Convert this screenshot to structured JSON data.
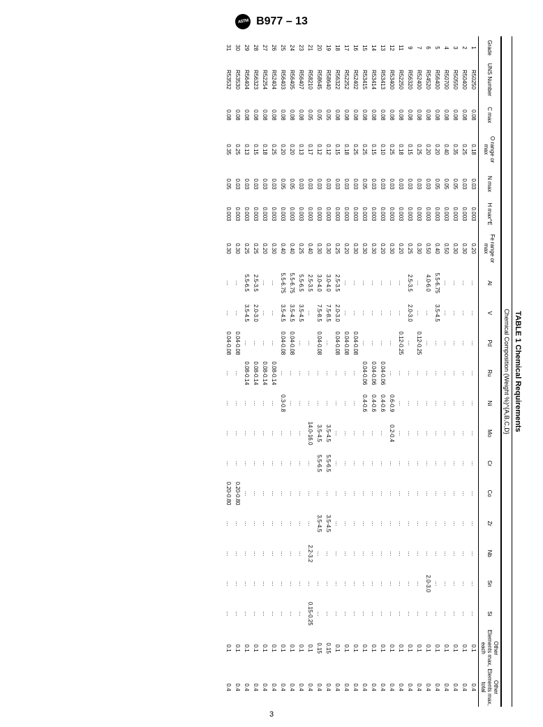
{
  "doc_id": "B977 – 13",
  "logo_text": "ASTM",
  "table_title": "TABLE 1 Chemical Requirements",
  "table_subtitle": "Chemical Composition (Weight %)^{A,B,C,D}",
  "page_number": "3",
  "columns": [
    {
      "key": "grade",
      "label": "Grade"
    },
    {
      "key": "uns",
      "label": "UNS Number"
    },
    {
      "key": "c",
      "label": "C max"
    },
    {
      "key": "o",
      "label": "O range or max"
    },
    {
      "key": "n",
      "label": "N max"
    },
    {
      "key": "h",
      "label": "H max^E"
    },
    {
      "key": "fe",
      "label": "Fe range or max"
    },
    {
      "key": "al",
      "label": "Al"
    },
    {
      "key": "v",
      "label": "V"
    },
    {
      "key": "pd",
      "label": "Pd"
    },
    {
      "key": "ru",
      "label": "Ru"
    },
    {
      "key": "ni",
      "label": "Ni"
    },
    {
      "key": "mo",
      "label": "Mo"
    },
    {
      "key": "cr",
      "label": "Cr"
    },
    {
      "key": "co",
      "label": "Co"
    },
    {
      "key": "zr",
      "label": "Zr"
    },
    {
      "key": "nb",
      "label": "Nb"
    },
    {
      "key": "sn",
      "label": "Sn"
    },
    {
      "key": "si",
      "label": "Si"
    },
    {
      "key": "oe_each",
      "label": "Other Elements max, each"
    },
    {
      "key": "oe_total",
      "label": "Other Elements max, total"
    }
  ],
  "rows": [
    {
      "grade": "1",
      "uns": "R50250",
      "c": "0.08",
      "o": "0.18",
      "n": "0.03",
      "h": "0.003",
      "fe": "0.20",
      "al": "…",
      "v": "…",
      "pd": "…",
      "ru": "…",
      "ni": "…",
      "mo": "…",
      "cr": "…",
      "co": "…",
      "zr": "…",
      "nb": "…",
      "sn": "…",
      "si": "…",
      "oe_each": "0.1",
      "oe_total": "0.4"
    },
    {
      "grade": "2",
      "uns": "R50400",
      "c": "0.08",
      "o": "0.25",
      "n": "0.03",
      "h": "0.003",
      "fe": "0.30",
      "al": "…",
      "v": "…",
      "pd": "…",
      "ru": "…",
      "ni": "…",
      "mo": "…",
      "cr": "…",
      "co": "…",
      "zr": "…",
      "nb": "…",
      "sn": "…",
      "si": "…",
      "oe_each": "0.1",
      "oe_total": "0.4"
    },
    {
      "grade": "3",
      "uns": "R50550",
      "c": "0.08",
      "o": "0.35",
      "n": "0.05",
      "h": "0.003",
      "fe": "0.30",
      "al": "…",
      "v": "…",
      "pd": "…",
      "ru": "…",
      "ni": "…",
      "mo": "…",
      "cr": "…",
      "co": "…",
      "zr": "…",
      "nb": "…",
      "sn": "…",
      "si": "…",
      "oe_each": "0.1",
      "oe_total": "0.4"
    },
    {
      "grade": "4",
      "uns": "R50700",
      "c": "0.08",
      "o": "0.40",
      "n": "0.05",
      "h": "0.003",
      "fe": "0.50",
      "al": "…",
      "v": "…",
      "pd": "…",
      "ru": "…",
      "ni": "…",
      "mo": "…",
      "cr": "…",
      "co": "…",
      "zr": "…",
      "nb": "…",
      "sn": "…",
      "si": "…",
      "oe_each": "0.1",
      "oe_total": "0.4"
    },
    {
      "grade": "5",
      "uns": "R56400",
      "c": "0.08",
      "o": "0.20",
      "n": "0.05",
      "h": "0.003",
      "fe": "0.40",
      "al": "5.5-6.75",
      "v": "3.5-4.5",
      "pd": "…",
      "ru": "…",
      "ni": "…",
      "mo": "…",
      "cr": "…",
      "co": "…",
      "zr": "…",
      "nb": "…",
      "sn": "…",
      "si": "…",
      "oe_each": "0.1",
      "oe_total": "0.4"
    },
    {
      "grade": "6",
      "uns": "R54520",
      "c": "0.08",
      "o": "0.20",
      "n": "0.03",
      "h": "0.003",
      "fe": "0.50",
      "al": "4.0-6.0",
      "v": "…",
      "pd": "…",
      "ru": "…",
      "ni": "…",
      "mo": "…",
      "cr": "…",
      "co": "…",
      "zr": "…",
      "nb": "…",
      "sn": "2.0-3.0",
      "si": "…",
      "oe_each": "0.1",
      "oe_total": "0.4"
    },
    {
      "grade": "7",
      "uns": "R52400",
      "c": "0.08",
      "o": "0.25",
      "n": "0.03",
      "h": "0.003",
      "fe": "0.30",
      "al": "…",
      "v": "…",
      "pd": "0.12-0.25",
      "ru": "…",
      "ni": "…",
      "mo": "…",
      "cr": "…",
      "co": "…",
      "zr": "…",
      "nb": "…",
      "sn": "…",
      "si": "…",
      "oe_each": "0.1",
      "oe_total": "0.4"
    },
    {
      "grade": "9",
      "uns": "R56320",
      "c": "0.08",
      "o": "0.15",
      "n": "0.03",
      "h": "0.003",
      "fe": "0.25",
      "al": "2.5-3.5",
      "v": "2.0-3.0",
      "pd": "…",
      "ru": "…",
      "ni": "…",
      "mo": "…",
      "cr": "…",
      "co": "…",
      "zr": "…",
      "nb": "…",
      "sn": "…",
      "si": "…",
      "oe_each": "0.1",
      "oe_total": "0.4"
    },
    {
      "grade": "11",
      "uns": "R52250",
      "c": "0.08",
      "o": "0.18",
      "n": "0.03",
      "h": "0.003",
      "fe": "0.20",
      "al": "…",
      "v": "…",
      "pd": "0.12-0.25",
      "ru": "…",
      "ni": "…",
      "mo": "…",
      "cr": "…",
      "co": "…",
      "zr": "…",
      "nb": "…",
      "sn": "…",
      "si": "…",
      "oe_each": "0.1",
      "oe_total": "0.4"
    },
    {
      "grade": "12",
      "uns": "R53400",
      "c": "0.08",
      "o": "0.25",
      "n": "0.03",
      "h": "0.003",
      "fe": "0.30",
      "al": "…",
      "v": "…",
      "pd": "…",
      "ru": "…",
      "ni": "0.6-0.9",
      "mo": "0.2-0.4",
      "cr": "…",
      "co": "…",
      "zr": "…",
      "nb": "…",
      "sn": "…",
      "si": "…",
      "oe_each": "0.1",
      "oe_total": "0.4"
    },
    {
      "grade": "13",
      "uns": "R53413",
      "c": "0.08",
      "o": "0.10",
      "n": "0.03",
      "h": "0.003",
      "fe": "0.20",
      "al": "…",
      "v": "…",
      "pd": "…",
      "ru": "0.04-0.06",
      "ni": "0.4-0.6",
      "mo": "…",
      "cr": "…",
      "co": "…",
      "zr": "…",
      "nb": "…",
      "sn": "…",
      "si": "…",
      "oe_each": "0.1",
      "oe_total": "0.4"
    },
    {
      "grade": "14",
      "uns": "R53414",
      "c": "0.08",
      "o": "0.15",
      "n": "0.03",
      "h": "0.003",
      "fe": "0.30",
      "al": "…",
      "v": "…",
      "pd": "…",
      "ru": "0.04-0.06",
      "ni": "0.4-0.6",
      "mo": "…",
      "cr": "…",
      "co": "…",
      "zr": "…",
      "nb": "…",
      "sn": "…",
      "si": "…",
      "oe_each": "0.1",
      "oe_total": "0.4"
    },
    {
      "grade": "15",
      "uns": "R53415",
      "c": "0.08",
      "o": "0.25",
      "n": "0.05",
      "h": "0.003",
      "fe": "0.30",
      "al": "…",
      "v": "…",
      "pd": "…",
      "ru": "0.04-0.06",
      "ni": "0.4-0.6",
      "mo": "…",
      "cr": "…",
      "co": "…",
      "zr": "…",
      "nb": "…",
      "sn": "…",
      "si": "…",
      "oe_each": "0.1",
      "oe_total": "0.4"
    },
    {
      "grade": "16",
      "uns": "R52402",
      "c": "0.08",
      "o": "0.25",
      "n": "0.03",
      "h": "0.003",
      "fe": "0.30",
      "al": "…",
      "v": "…",
      "pd": "0.04-0.08",
      "ru": "…",
      "ni": "…",
      "mo": "…",
      "cr": "…",
      "co": "…",
      "zr": "…",
      "nb": "…",
      "sn": "…",
      "si": "…",
      "oe_each": "0.1",
      "oe_total": "0.4"
    },
    {
      "grade": "17",
      "uns": "R52252",
      "c": "0.08",
      "o": "0.18",
      "n": "0.03",
      "h": "0.003",
      "fe": "0.20",
      "al": "…",
      "v": "…",
      "pd": "0.04-0.08",
      "ru": "…",
      "ni": "…",
      "mo": "…",
      "cr": "…",
      "co": "…",
      "zr": "…",
      "nb": "…",
      "sn": "…",
      "si": "…",
      "oe_each": "0.1",
      "oe_total": "0.4"
    },
    {
      "grade": "18",
      "uns": "R56322",
      "c": "0.08",
      "o": "0.15",
      "n": "0.03",
      "h": "0.003",
      "fe": "0.25",
      "al": "2.5-3.5",
      "v": "2.0-3.0",
      "pd": "0.04-0.08",
      "ru": "…",
      "ni": "…",
      "mo": "…",
      "cr": "…",
      "co": "…",
      "zr": "…",
      "nb": "…",
      "sn": "…",
      "si": "…",
      "oe_each": "0.1",
      "oe_total": "0.4"
    },
    {
      "grade": "19",
      "uns": "R58640",
      "c": "0.05",
      "o": "0.12",
      "n": "0.03",
      "h": "0.003",
      "fe": "0.30",
      "al": "3.0-4.0",
      "v": "7.5-8.5",
      "pd": "…",
      "ru": "…",
      "ni": "…",
      "mo": "3.5-4.5",
      "cr": "5.5-6.5",
      "co": "…",
      "zr": "3.5-4.5",
      "nb": "…",
      "sn": "…",
      "si": "…",
      "oe_each": "0.15",
      "oe_total": "0.4"
    },
    {
      "grade": "20",
      "uns": "R58645",
      "c": "0.05",
      "o": "0.12",
      "n": "0.03",
      "h": "0.003",
      "fe": "0.30",
      "al": "3.0-4.0",
      "v": "7.5-8.5",
      "pd": "0.04-0.08",
      "ru": "…",
      "ni": "…",
      "mo": "3.5-4.5",
      "cr": "5.5-6.5",
      "co": "…",
      "zr": "3.5-4.5",
      "nb": "…",
      "sn": "…",
      "si": "…",
      "oe_each": "0.15",
      "oe_total": "0.4"
    },
    {
      "grade": "21",
      "uns": "R58210",
      "c": "0.05",
      "o": "0.17",
      "n": "0.03",
      "h": "0.003",
      "fe": "0.40",
      "al": "2.5-3.5",
      "v": "…",
      "pd": "…",
      "ru": "…",
      "ni": "…",
      "mo": "14.0-16.0",
      "cr": "…",
      "co": "…",
      "zr": "…",
      "nb": "2.2-3.2",
      "sn": "…",
      "si": "0.15-0.25",
      "oe_each": "0.1",
      "oe_total": "0.4"
    },
    {
      "grade": "23",
      "uns": "R56407",
      "c": "0.08",
      "o": "0.13",
      "n": "0.03",
      "h": "0.003",
      "fe": "0.25",
      "al": "5.5-6.5",
      "v": "3.5-4.5",
      "pd": "…",
      "ru": "…",
      "ni": "…",
      "mo": "…",
      "cr": "…",
      "co": "…",
      "zr": "…",
      "nb": "…",
      "sn": "…",
      "si": "…",
      "oe_each": "0.1",
      "oe_total": "0.4"
    },
    {
      "grade": "24",
      "uns": "R56405",
      "c": "0.08",
      "o": "0.20",
      "n": "0.05",
      "h": "0.003",
      "fe": "0.40",
      "al": "5.5-6.75",
      "v": "3.5-4.5",
      "pd": "0.04-0.08",
      "ru": "…",
      "ni": "…",
      "mo": "…",
      "cr": "…",
      "co": "…",
      "zr": "…",
      "nb": "…",
      "sn": "…",
      "si": "…",
      "oe_each": "0.1",
      "oe_total": "0.4"
    },
    {
      "grade": "25",
      "uns": "R56403",
      "c": "0.08",
      "o": "0.20",
      "n": "0.05",
      "h": "0.003",
      "fe": "0.40",
      "al": "5.5-6.75",
      "v": "3.5-4.5",
      "pd": "0.04-0.08",
      "ru": "…",
      "ni": "0.3-0.8",
      "mo": "…",
      "cr": "…",
      "co": "…",
      "zr": "…",
      "nb": "…",
      "sn": "…",
      "si": "…",
      "oe_each": "0.1",
      "oe_total": "0.4"
    },
    {
      "grade": "26",
      "uns": "R52404",
      "c": "0.08",
      "o": "0.25",
      "n": "0.03",
      "h": "0.003",
      "fe": "0.30",
      "al": "…",
      "v": "…",
      "pd": "…",
      "ru": "0.08-0.14",
      "ni": "…",
      "mo": "…",
      "cr": "…",
      "co": "…",
      "zr": "…",
      "nb": "…",
      "sn": "…",
      "si": "…",
      "oe_each": "0.1",
      "oe_total": "0.4"
    },
    {
      "grade": "27",
      "uns": "R52254",
      "c": "0.08",
      "o": "0.18",
      "n": "0.03",
      "h": "0.003",
      "fe": "0.20",
      "al": "…",
      "v": "…",
      "pd": "…",
      "ru": "0.08-0.14",
      "ni": "…",
      "mo": "…",
      "cr": "…",
      "co": "…",
      "zr": "…",
      "nb": "…",
      "sn": "…",
      "si": "…",
      "oe_each": "0.1",
      "oe_total": "0.4"
    },
    {
      "grade": "28",
      "uns": "R56323",
      "c": "0.08",
      "o": "0.15",
      "n": "0.03",
      "h": "0.003",
      "fe": "0.25",
      "al": "2.5-3.5",
      "v": "2.0-3.0",
      "pd": "…",
      "ru": "0.08-0.14",
      "ni": "…",
      "mo": "…",
      "cr": "…",
      "co": "…",
      "zr": "…",
      "nb": "…",
      "sn": "…",
      "si": "…",
      "oe_each": "0.1",
      "oe_total": "0.4"
    },
    {
      "grade": "29",
      "uns": "R56404",
      "c": "0.08",
      "o": "0.13",
      "n": "0.03",
      "h": "0.003",
      "fe": "0.25",
      "al": "5.5-6.5",
      "v": "3.5-4.5",
      "pd": "…",
      "ru": "0.08-0.14",
      "ni": "…",
      "mo": "…",
      "cr": "…",
      "co": "…",
      "zr": "…",
      "nb": "…",
      "sn": "…",
      "si": "…",
      "oe_each": "0.1",
      "oe_total": "0.4"
    },
    {
      "grade": "30",
      "uns": "R53530",
      "c": "0.08",
      "o": "0.25",
      "n": "0.03",
      "h": "0.003",
      "fe": "0.30",
      "al": "…",
      "v": "…",
      "pd": "0.04-0.08",
      "ru": "…",
      "ni": "…",
      "mo": "…",
      "cr": "…",
      "co": "0.20-0.80",
      "zr": "…",
      "nb": "…",
      "sn": "…",
      "si": "…",
      "oe_each": "0.1",
      "oe_total": "0.4"
    },
    {
      "grade": "31",
      "uns": "R53532",
      "c": "0.08",
      "o": "0.35",
      "n": "0.05",
      "h": "0.003",
      "fe": "0.30",
      "al": "…",
      "v": "…",
      "pd": "0.04-0.08",
      "ru": "…",
      "ni": "…",
      "mo": "…",
      "cr": "…",
      "co": "0.20-0.80",
      "zr": "…",
      "nb": "…",
      "sn": "…",
      "si": "…",
      "oe_each": "0.1",
      "oe_total": "0.4"
    }
  ]
}
